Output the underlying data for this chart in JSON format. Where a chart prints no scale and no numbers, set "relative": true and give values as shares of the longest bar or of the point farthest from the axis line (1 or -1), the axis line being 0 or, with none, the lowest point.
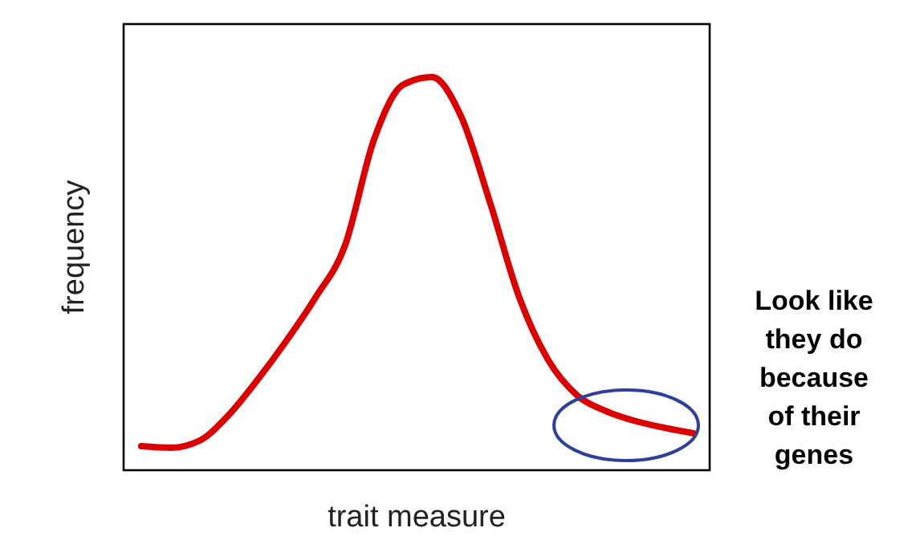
{
  "chart_data": {
    "type": "line",
    "relative": true,
    "xlabel": "trait measure",
    "ylabel": "frequency",
    "grid": false,
    "marker": "none",
    "line_style": "solid",
    "categories": [
      null,
      null,
      null,
      null,
      null,
      null,
      null,
      null,
      null,
      null,
      null,
      null,
      null,
      null,
      null,
      null,
      null,
      null,
      null,
      null
    ],
    "series": [
      {
        "color": "#dd0000",
        "values": [
          0.061,
          0.057,
          0.075,
          0.14,
          0.23,
          0.33,
          0.44,
          0.57,
          0.84,
          0.98,
          1,
          0.9,
          0.68,
          0.44,
          0.28,
          0.19,
          0.15,
          0.125,
          0.108,
          0.094
        ]
      }
    ],
    "annotations": [
      "Look like they do because of their genes"
    ]
  }
}
